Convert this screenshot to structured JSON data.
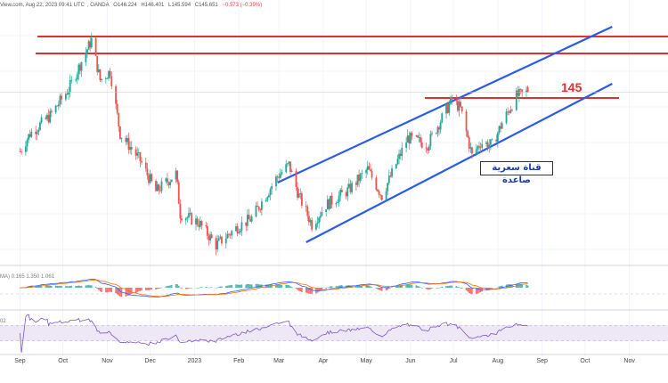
{
  "info": {
    "source": "View.com, Aug 22, 2023 09:41 UTC",
    "sym": ", OANDA",
    "open": "O146.224",
    "high": "H146.401",
    "low": "L145.594",
    "close": "C145.651",
    "change": "−0.573 (−0.39%)"
  },
  "macd_legend": "MA)  0.165  1.350  1.061",
  "rsi_legend": "02",
  "level_label": "145",
  "channel_label": "قناة سعرية صاعدة",
  "colors": {
    "up": "#26a69a",
    "down": "#ef5350",
    "level": "#e03131",
    "channel": "#2b5ce6",
    "macd": "#2962ff",
    "signal": "#ff6d00",
    "rsi": "#7e57c2",
    "rsi_band": "#ede7f6"
  },
  "chart_data": {
    "type": "candlestick",
    "price_pattern": [
      [
        "2022-09-01",
        139
      ],
      [
        "2022-09-08",
        141
      ],
      [
        "2022-09-22",
        143
      ],
      [
        "2022-10-05",
        146
      ],
      [
        "2022-10-21",
        151.5
      ],
      [
        "2022-10-27",
        147
      ],
      [
        "2022-11-03",
        148
      ],
      [
        "2022-11-10",
        141
      ],
      [
        "2022-11-24",
        138
      ],
      [
        "2022-12-05",
        134.5
      ],
      [
        "2022-12-19",
        136.5
      ],
      [
        "2022-12-22",
        132
      ],
      [
        "2023-01-04",
        131
      ],
      [
        "2023-01-16",
        128.5
      ],
      [
        "2023-01-31",
        130.5
      ],
      [
        "2023-02-10",
        131.5
      ],
      [
        "2023-02-28",
        136.2
      ],
      [
        "2023-03-08",
        137.5
      ],
      [
        "2023-03-15",
        134
      ],
      [
        "2023-03-24",
        130.8
      ],
      [
        "2023-04-03",
        133
      ],
      [
        "2023-04-19",
        134.7
      ],
      [
        "2023-05-02",
        137
      ],
      [
        "2023-05-12",
        134
      ],
      [
        "2023-05-30",
        140.5
      ],
      [
        "2023-06-13",
        139.8
      ],
      [
        "2023-06-30",
        144.8
      ],
      [
        "2023-07-06",
        143.8
      ],
      [
        "2023-07-14",
        138.5
      ],
      [
        "2023-07-20",
        140
      ],
      [
        "2023-07-28",
        139.7
      ],
      [
        "2023-08-04",
        142.2
      ],
      [
        "2023-08-14",
        145.2
      ],
      [
        "2023-08-22",
        145.65
      ]
    ],
    "levels": [
      151.9,
      150,
      145
    ],
    "channel": {
      "upper": [
        [
          "2023-02-28",
          135.5
        ],
        [
          "2023-10-20",
          153
        ]
      ],
      "lower": [
        [
          "2023-03-20",
          128.8
        ],
        [
          "2023-10-20",
          146.6
        ]
      ]
    },
    "x_tick_labels": [
      {
        "label": "Sep",
        "date": "2022-09-01"
      },
      {
        "label": "Oct",
        "date": "2022-10-01"
      },
      {
        "label": "Nov",
        "date": "2022-11-01"
      },
      {
        "label": "Dec",
        "date": "2022-12-01"
      },
      {
        "label": "2023",
        "date": "2023-01-01"
      },
      {
        "label": "Feb",
        "date": "2023-02-01"
      },
      {
        "label": "Mar",
        "date": "2023-03-01"
      },
      {
        "label": "Apr",
        "date": "2023-04-01"
      },
      {
        "label": "May",
        "date": "2023-05-01"
      },
      {
        "label": "Jun",
        "date": "2023-06-01"
      },
      {
        "label": "Jul",
        "date": "2023-07-01"
      },
      {
        "label": "Aug",
        "date": "2023-08-01"
      },
      {
        "label": "Sep",
        "date": "2023-09-01"
      },
      {
        "label": "Oct",
        "date": "2023-10-01"
      },
      {
        "label": "Nov",
        "date": "2023-11-01"
      }
    ],
    "x_range": [
      "2022-08-18",
      "2023-11-28"
    ],
    "y_range": [
      127,
      154
    ]
  }
}
